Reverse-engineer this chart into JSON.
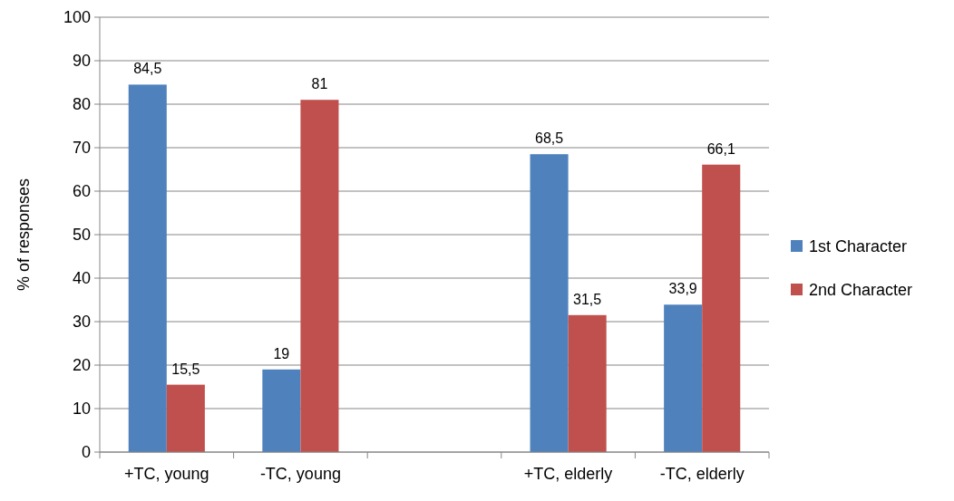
{
  "chart_data": {
    "type": "bar",
    "ylabel": "% of responses",
    "categories": [
      "+TC, young",
      "-TC, young",
      null,
      "+TC, elderly",
      "-TC, elderly"
    ],
    "series": [
      {
        "name": "1st Character",
        "color": "#4f81bd",
        "values": [
          84.5,
          19,
          null,
          68.5,
          33.9
        ],
        "value_labels": [
          "84,5",
          "19",
          null,
          "68,5",
          "33,9"
        ]
      },
      {
        "name": "2nd Character",
        "color": "#c0504d",
        "values": [
          15.5,
          81,
          null,
          31.5,
          66.1
        ],
        "value_labels": [
          "15,5",
          "81",
          null,
          "31,5",
          "66,1"
        ]
      }
    ],
    "ylim": [
      0,
      100
    ],
    "yticks": [
      0,
      10,
      20,
      30,
      40,
      50,
      60,
      70,
      80,
      90,
      100
    ],
    "grid": "y",
    "legend": "right"
  }
}
